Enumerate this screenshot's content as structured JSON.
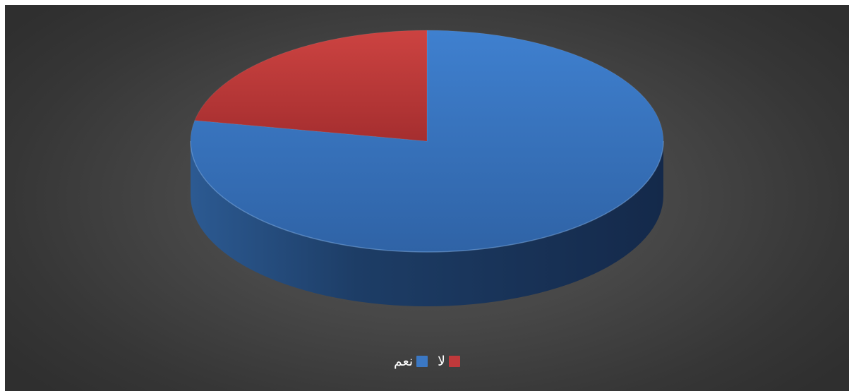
{
  "chart_data": {
    "type": "pie",
    "title": "",
    "categories": [
      "نعم",
      "لا"
    ],
    "values": [
      78,
      22
    ],
    "colors": [
      "#3b78c4",
      "#c0393b"
    ],
    "side_colors": [
      "#1f426e",
      "#6e1f20"
    ],
    "three_d": true,
    "legend_position": "bottom",
    "start_angle": "top",
    "direction": "clockwise"
  },
  "legend": {
    "items": [
      {
        "label": "لا",
        "color": "#c0393b"
      },
      {
        "label": "نعم",
        "color": "#3b78c4"
      }
    ]
  }
}
